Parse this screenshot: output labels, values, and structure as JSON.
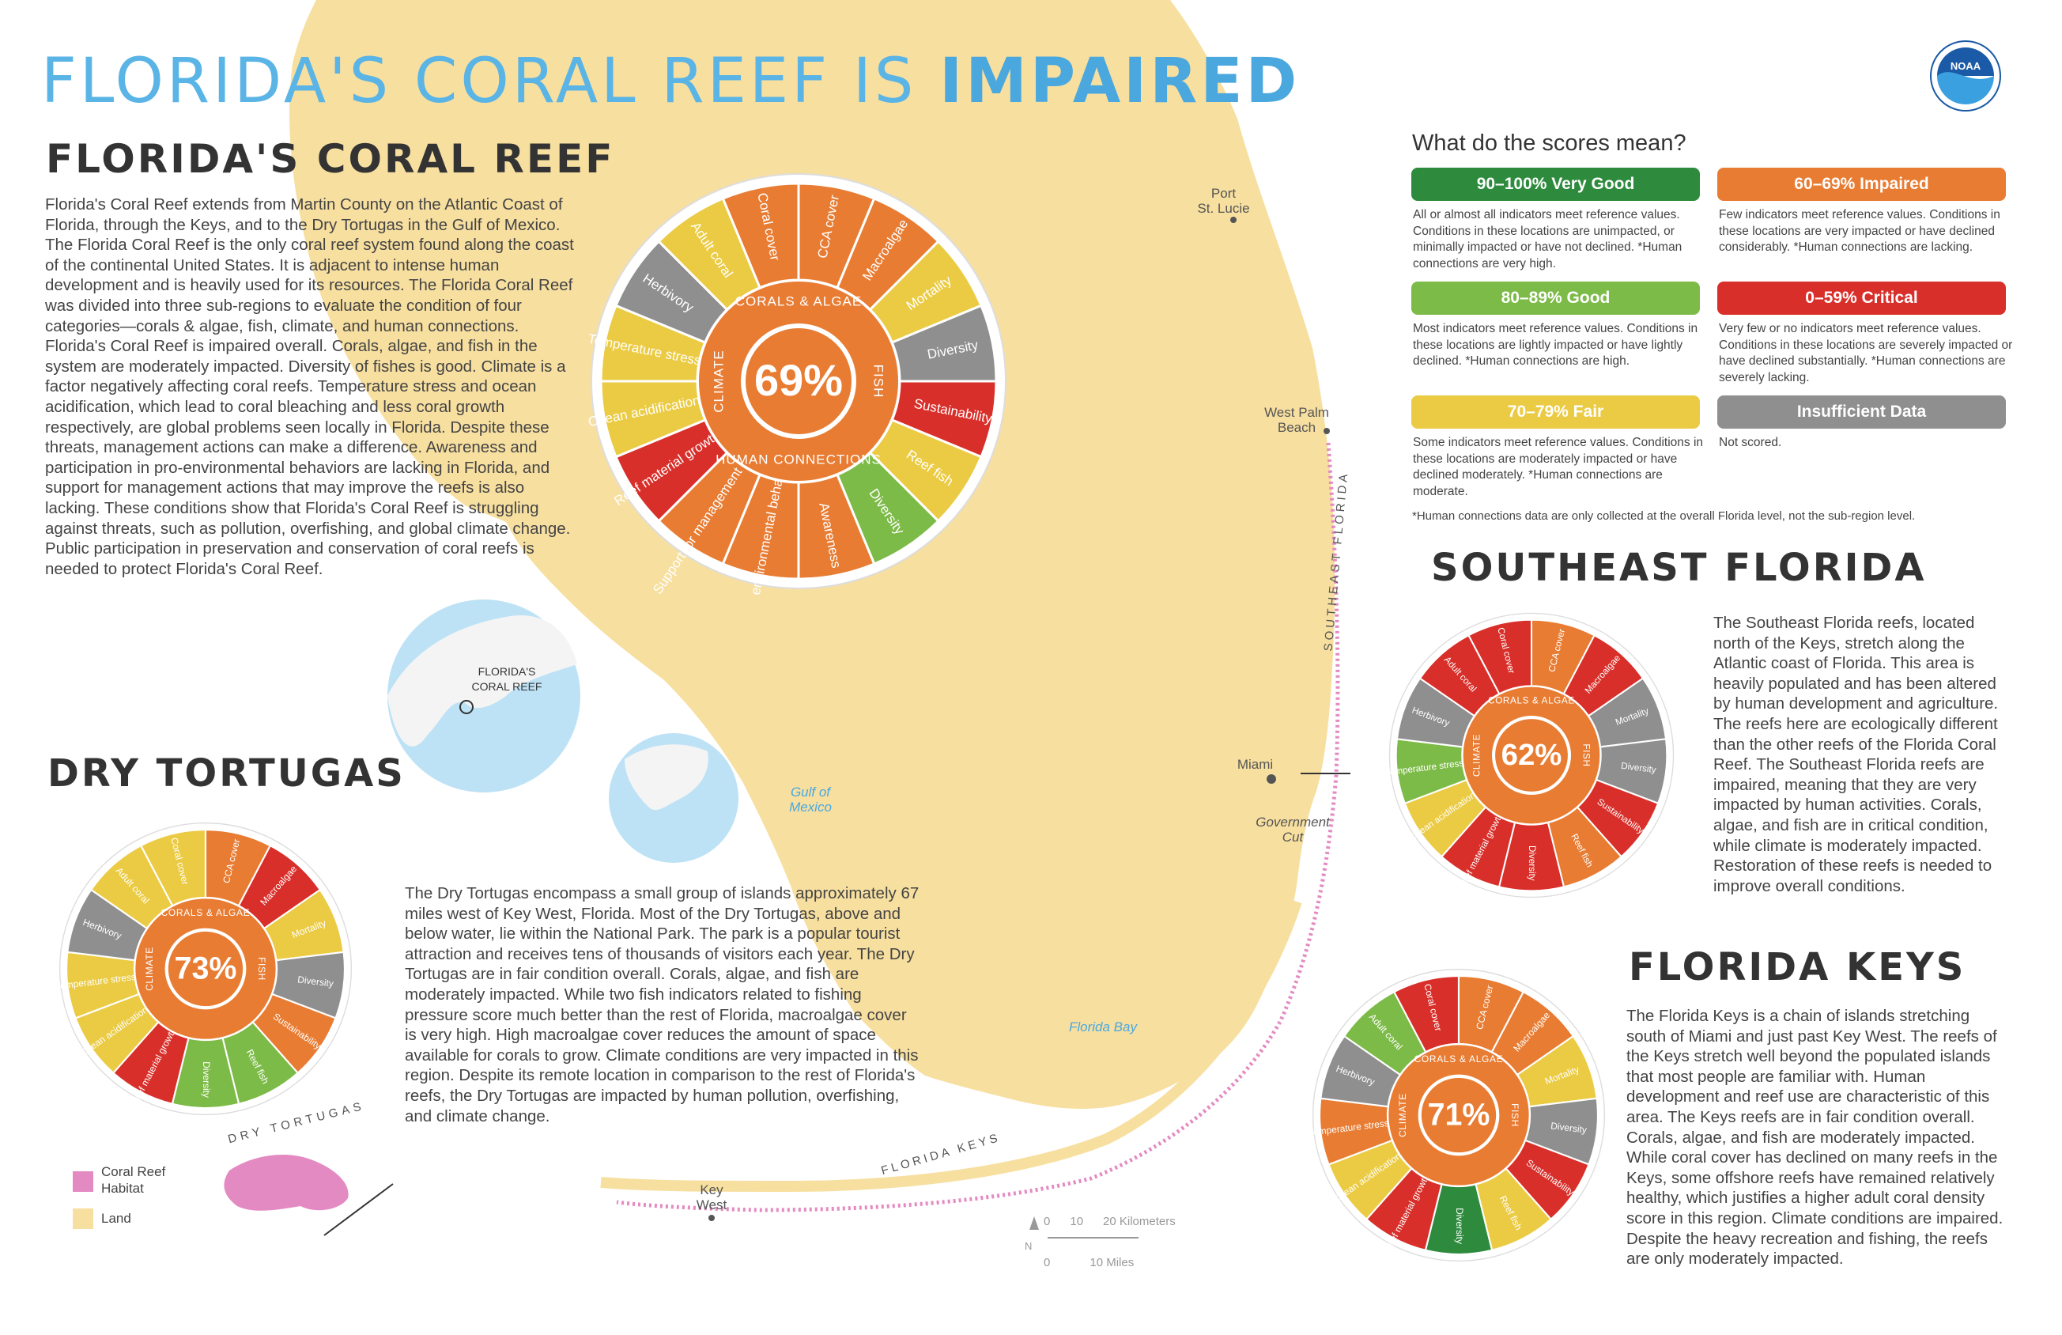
{
  "title": {
    "plain": "FLORIDA'S CORAL REEF IS",
    "emph": "IMPAIRED"
  },
  "logo_text": "NOAA",
  "colors": {
    "very_good": "#2e8b3d",
    "good": "#7dbb48",
    "fair": "#ebcb43",
    "impaired": "#e87c33",
    "critical": "#d92f2a",
    "insufficient": "#8f8f8f",
    "land": "#f7dfa0",
    "reef": "#e48ac2",
    "water_label": "#4aa8df"
  },
  "main": {
    "heading": "FLORIDA'S CORAL REEF",
    "text": "Florida's Coral Reef extends from Martin County on the Atlantic Coast of Florida, through the Keys, and to the Dry Tortugas in the Gulf of Mexico. The Florida Coral Reef is the only coral reef system found along the coast of the continental United States. It is adjacent to intense human development and is heavily used for its resources. The Florida Coral Reef was divided into three sub-regions to evaluate the condition of four categories—corals & algae, fish, climate, and human connections. Florida's Coral Reef is impaired overall. Corals, algae, and fish in the system are moderately impacted. Diversity of fishes is good. Climate is a factor negatively affecting coral reefs. Temperature stress and ocean acidification, which lead to coral bleaching and less coral growth respectively, are global problems seen locally in Florida. Despite these threats, management actions can make a difference. Awareness and participation in pro-environmental behaviors are lacking in Florida, and support for management actions that may improve the reefs is also lacking. These conditions show that Florida's Coral Reef is struggling against threats, such as pollution, overfishing, and global climate change. Public participation in preservation and conservation of coral reefs is needed to protect Florida's Coral Reef."
  },
  "legend": {
    "heading": "What do the scores mean?",
    "items": [
      {
        "label": "90–100%  Very Good",
        "desc": "All or almost all indicators meet reference values. Conditions in these locations are unimpacted, or minimally impacted or have not declined. *Human connections are very high.",
        "color": "#2e8b3d"
      },
      {
        "label": "60–69%  Impaired",
        "desc": "Few indicators meet reference values. Conditions in these locations are very impacted or have declined considerably. *Human connections are lacking.",
        "color": "#e87c33"
      },
      {
        "label": "80–89%  Good",
        "desc": "Most indicators meet reference values. Conditions in these locations are lightly impacted or have lightly declined. *Human connections are high.",
        "color": "#7dbb48"
      },
      {
        "label": "0–59%  Critical",
        "desc": "Very few or no indicators meet reference values. Conditions in these locations are severely impacted or have declined substantially. *Human connections are severely lacking.",
        "color": "#d92f2a"
      },
      {
        "label": "70–79%  Fair",
        "desc": "Some indicators meet reference values. Conditions in these locations are moderately impacted or have declined moderately. *Human connections are moderate.",
        "color": "#ebcb43"
      },
      {
        "label": "Insufficient Data",
        "desc": "Not scored.",
        "color": "#8f8f8f"
      }
    ],
    "footnote": "*Human connections data are only collected at the overall Florida level, not the sub-region level."
  },
  "southeast": {
    "heading": "SOUTHEAST FLORIDA",
    "text": "The Southeast Florida reefs, located north of the Keys, stretch along the Atlantic coast of Florida. This area is heavily populated and has been altered by human development and agriculture. The reefs here are ecologically different than the other reefs of the Florida Coral Reef. The Southeast Florida reefs are impaired, meaning that they are very impacted by human activities. Corals, algae, and fish are in critical condition, while climate is moderately impacted. Restoration of these reefs is needed to improve overall conditions."
  },
  "keys": {
    "heading": "FLORIDA KEYS",
    "text": "The Florida Keys is a chain of islands stretching south of Miami and just past Key West. The reefs of the Keys stretch well beyond the populated islands that most people are familiar with. Human development and reef use are characteristic of this area. The Keys reefs are in fair condition overall. Corals, algae, and fish are moderately impacted. While coral cover has declined on many reefs in the Keys, some offshore reefs have remained relatively healthy, which justifies a higher adult coral density score in this region. Climate conditions are impaired. Despite the heavy recreation and fishing, the reefs are only moderately impacted."
  },
  "tortugas": {
    "heading": "DRY TORTUGAS",
    "text": "The Dry Tortugas encompass a small group of islands approximately 67 miles west of Key West, Florida. Most of the Dry Tortugas, above and below water, lie within the National Park. The park is a popular tourist attraction and receives tens of thousands of visitors each year. The Dry Tortugas are in fair condition overall. Corals, algae, and fish are moderately impacted. While two fish indicators related to fishing pressure score much better than the rest of Florida, macroalgae cover is very high. High macroalgae cover reduces the amount of space available for corals to grow. Climate conditions are very impacted in this region. Despite its remote location in comparison to the rest of Florida's reefs, the Dry Tortugas are impacted by human pollution, overfishing, and climate change."
  },
  "map_labels": {
    "port_st_lucie": "Port\nSt. Lucie",
    "west_palm": "West Palm\nBeach",
    "miami": "Miami",
    "government_cut": "Government\nCut",
    "key_west": "Key\nWest",
    "gulf": "Gulf of\nMexico",
    "florida_bay": "Florida Bay",
    "florida_keys": "FLORIDA KEYS",
    "southeast_florida": "SOUTHEAST FLORIDA",
    "dry_tortugas": "DRY TORTUGAS",
    "inset_reef": "FLORIDA'S\nCORAL REEF"
  },
  "map_legend": {
    "reef": "Coral Reef\nHabitat",
    "land": "Land"
  },
  "scale": {
    "km": "0      10      20 Kilometers",
    "mi": "0            10 Miles",
    "north": "N"
  },
  "chart_data": [
    {
      "type": "pie",
      "title": "Florida's Coral Reef",
      "score": "69%",
      "rings": [
        "CORALS & ALGAE",
        "FISH",
        "HUMAN CONNECTIONS",
        "CLIMATE"
      ],
      "slices": [
        {
          "label": "Coral cover",
          "color": "#e87c33"
        },
        {
          "label": "CCA cover",
          "color": "#e87c33"
        },
        {
          "label": "Macroalgae",
          "color": "#e87c33"
        },
        {
          "label": "Mortality",
          "color": "#ebcb43"
        },
        {
          "label": "Diversity",
          "color": "#8f8f8f"
        },
        {
          "label": "Sustainability",
          "color": "#d92f2a"
        },
        {
          "label": "Reef fish",
          "color": "#ebcb43"
        },
        {
          "label": "Diversity",
          "color": "#7dbb48"
        },
        {
          "label": "Awareness",
          "color": "#e87c33"
        },
        {
          "label": "Pro-environmental behaviors",
          "color": "#e87c33"
        },
        {
          "label": "Support for management actions",
          "color": "#e87c33"
        },
        {
          "label": "Reef material growth",
          "color": "#d92f2a"
        },
        {
          "label": "Ocean acidification",
          "color": "#ebcb43"
        },
        {
          "label": "Temperature stress",
          "color": "#ebcb43"
        },
        {
          "label": "Herbivory",
          "color": "#8f8f8f"
        },
        {
          "label": "Adult coral",
          "color": "#ebcb43"
        }
      ]
    },
    {
      "type": "pie",
      "title": "Southeast Florida",
      "score": "62%",
      "rings": [
        "CORALS & ALGAE",
        "FISH",
        "CLIMATE"
      ],
      "slices": [
        {
          "label": "Coral cover",
          "color": "#d92f2a"
        },
        {
          "label": "CCA cover",
          "color": "#e87c33"
        },
        {
          "label": "Macroalgae",
          "color": "#d92f2a"
        },
        {
          "label": "Mortality",
          "color": "#8f8f8f"
        },
        {
          "label": "Diversity",
          "color": "#8f8f8f"
        },
        {
          "label": "Sustainability",
          "color": "#d92f2a"
        },
        {
          "label": "Reef fish",
          "color": "#e87c33"
        },
        {
          "label": "Diversity",
          "color": "#d92f2a"
        },
        {
          "label": "Reef material growth",
          "color": "#d92f2a"
        },
        {
          "label": "Ocean acidification",
          "color": "#ebcb43"
        },
        {
          "label": "Temperature stress",
          "color": "#7dbb48"
        },
        {
          "label": "Herbivory",
          "color": "#8f8f8f"
        },
        {
          "label": "Adult coral",
          "color": "#d92f2a"
        }
      ]
    },
    {
      "type": "pie",
      "title": "Florida Keys",
      "score": "71%",
      "rings": [
        "CORALS & ALGAE",
        "FISH",
        "CLIMATE"
      ],
      "slices": [
        {
          "label": "Coral cover",
          "color": "#d92f2a"
        },
        {
          "label": "CCA cover",
          "color": "#e87c33"
        },
        {
          "label": "Macroalgae",
          "color": "#e87c33"
        },
        {
          "label": "Mortality",
          "color": "#ebcb43"
        },
        {
          "label": "Diversity",
          "color": "#8f8f8f"
        },
        {
          "label": "Sustainability",
          "color": "#d92f2a"
        },
        {
          "label": "Reef fish",
          "color": "#ebcb43"
        },
        {
          "label": "Diversity",
          "color": "#2e8b3d"
        },
        {
          "label": "Reef material growth",
          "color": "#d92f2a"
        },
        {
          "label": "Ocean acidification",
          "color": "#ebcb43"
        },
        {
          "label": "Temperature stress",
          "color": "#e87c33"
        },
        {
          "label": "Herbivory",
          "color": "#8f8f8f"
        },
        {
          "label": "Adult coral",
          "color": "#7dbb48"
        }
      ]
    },
    {
      "type": "pie",
      "title": "Dry Tortugas",
      "score": "73%",
      "rings": [
        "CORALS & ALGAE",
        "FISH",
        "CLIMATE"
      ],
      "slices": [
        {
          "label": "Coral cover",
          "color": "#ebcb43"
        },
        {
          "label": "CCA cover",
          "color": "#e87c33"
        },
        {
          "label": "Macroalgae",
          "color": "#d92f2a"
        },
        {
          "label": "Mortality",
          "color": "#ebcb43"
        },
        {
          "label": "Diversity",
          "color": "#8f8f8f"
        },
        {
          "label": "Sustainability",
          "color": "#e87c33"
        },
        {
          "label": "Reef fish",
          "color": "#7dbb48"
        },
        {
          "label": "Diversity",
          "color": "#7dbb48"
        },
        {
          "label": "Reef material growth",
          "color": "#d92f2a"
        },
        {
          "label": "Ocean acidification",
          "color": "#ebcb43"
        },
        {
          "label": "Temperature stress",
          "color": "#ebcb43"
        },
        {
          "label": "Herbivory",
          "color": "#8f8f8f"
        },
        {
          "label": "Adult coral",
          "color": "#ebcb43"
        }
      ]
    }
  ]
}
